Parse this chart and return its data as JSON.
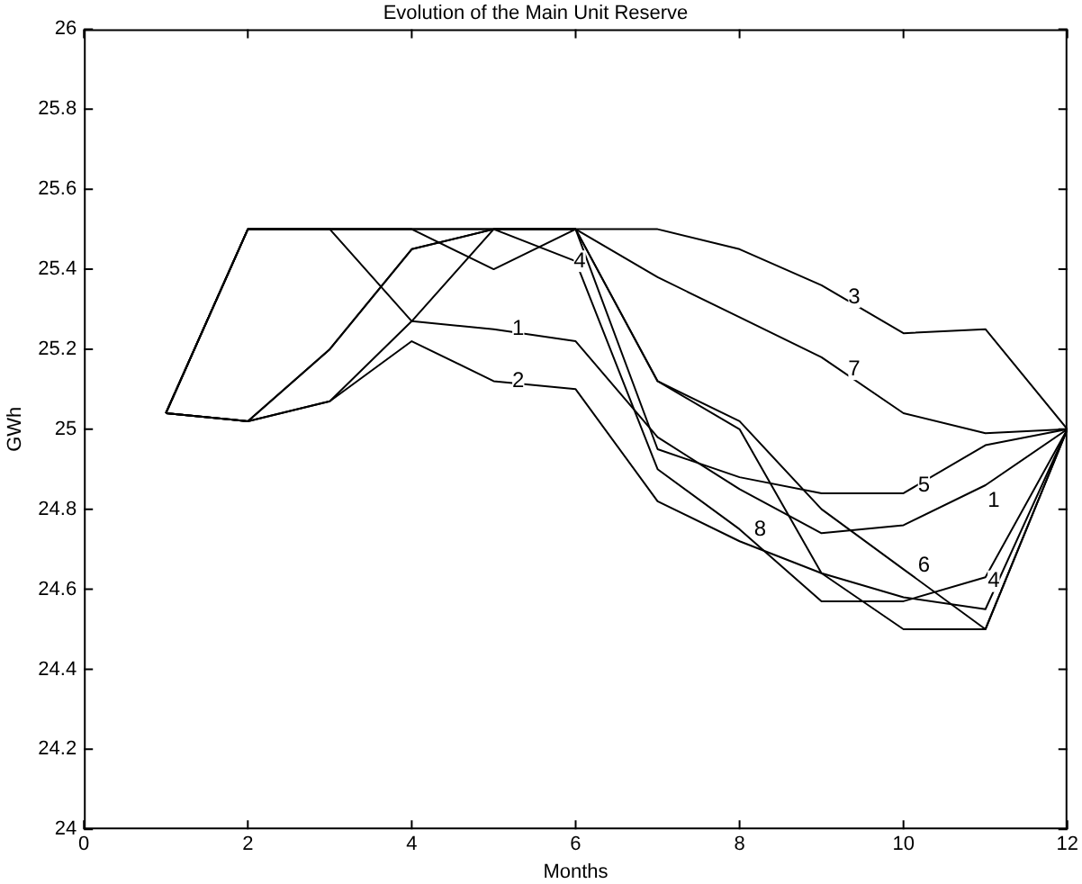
{
  "chart_data": {
    "type": "line",
    "title": "Evolution of the Main Unit Reserve",
    "xlabel": "Months",
    "ylabel": "GWh",
    "x": [
      1,
      2,
      3,
      4,
      5,
      6,
      7,
      8,
      9,
      10,
      11,
      12
    ],
    "series": [
      {
        "color": "#000000",
        "values": [
          25.04,
          25.02,
          25.07,
          25.27,
          25.25,
          25.22,
          24.98,
          24.85,
          24.74,
          24.76,
          24.86,
          25
        ]
      },
      {
        "color": "#000000",
        "values": [
          25.04,
          25.02,
          25.07,
          25.22,
          25.12,
          25.1,
          24.82,
          24.72,
          24.64,
          24.58,
          24.55,
          25
        ]
      },
      {
        "color": "#000000",
        "values": [
          25.04,
          25.5,
          25.5,
          25.5,
          25.5,
          25.5,
          25.5,
          25.45,
          25.36,
          25.24,
          25.25,
          25
        ]
      },
      {
        "color": "#000000",
        "values": [
          25.04,
          25.02,
          25.2,
          25.45,
          25.5,
          25.42,
          24.9,
          24.75,
          24.57,
          24.57,
          24.63,
          25
        ]
      },
      {
        "color": "#000000",
        "values": [
          25.04,
          25.5,
          25.5,
          25.5,
          25.4,
          25.5,
          24.95,
          24.88,
          24.84,
          24.84,
          24.96,
          25
        ]
      },
      {
        "color": "#000000",
        "values": [
          25.04,
          25.5,
          25.5,
          25.27,
          25.5,
          25.5,
          25.12,
          25.02,
          24.8,
          24.65,
          24.5,
          25
        ]
      },
      {
        "color": "#000000",
        "values": [
          25.04,
          25.5,
          25.5,
          25.5,
          25.5,
          25.5,
          25.38,
          25.28,
          25.18,
          25.04,
          24.99,
          25
        ]
      },
      {
        "color": "#000000",
        "values": [
          25.04,
          25.02,
          25.2,
          25.45,
          25.5,
          25.5,
          25.12,
          25.0,
          24.64,
          24.5,
          24.5,
          25
        ]
      }
    ],
    "annotations": [
      {
        "text": "1",
        "x": 5.3,
        "y": 25.25
      },
      {
        "text": "2",
        "x": 5.3,
        "y": 25.12
      },
      {
        "text": "4",
        "x": 6.05,
        "y": 25.42
      },
      {
        "text": "3",
        "x": 9.4,
        "y": 25.33
      },
      {
        "text": "7",
        "x": 9.4,
        "y": 25.15
      },
      {
        "text": "5",
        "x": 10.25,
        "y": 24.86
      },
      {
        "text": "1",
        "x": 11.1,
        "y": 24.82
      },
      {
        "text": "8",
        "x": 8.25,
        "y": 24.75
      },
      {
        "text": "6",
        "x": 10.25,
        "y": 24.66
      },
      {
        "text": "4",
        "x": 11.1,
        "y": 24.62
      }
    ],
    "xlim": [
      0,
      12
    ],
    "xticks": [
      0,
      2,
      4,
      6,
      8,
      10,
      12
    ],
    "ylim": [
      24,
      26
    ],
    "yticks": [
      24,
      24.2,
      24.4,
      24.6,
      24.8,
      25,
      25.2,
      25.4,
      25.6,
      25.8,
      26
    ],
    "grid": false,
    "legend": false,
    "marker": "none",
    "line_style": "solid"
  }
}
